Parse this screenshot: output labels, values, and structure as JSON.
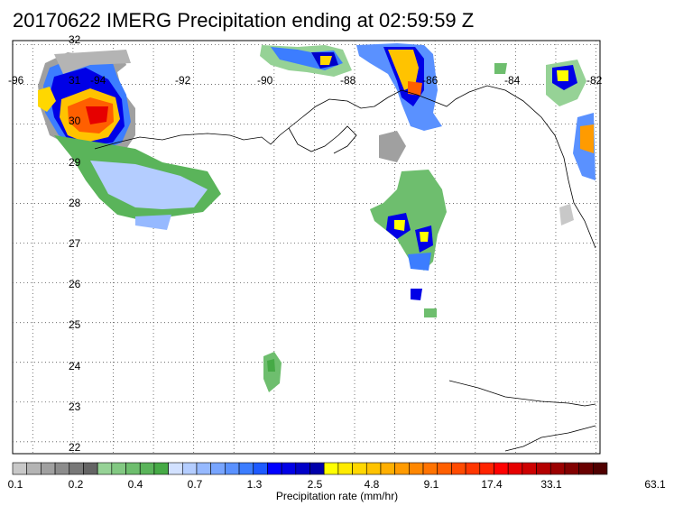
{
  "title": "20170622 IMERG Precipitation ending at 02:59:59 Z",
  "map": {
    "lon_labels": [
      "-96",
      "-94",
      "-92",
      "-90",
      "-88",
      "-86",
      "-84",
      "-82"
    ],
    "lat_labels": [
      "32",
      "31",
      "30",
      "29",
      "28",
      "27",
      "26",
      "25",
      "24",
      "23",
      "22"
    ],
    "lon_range": [
      -96.5,
      -81.9
    ],
    "lat_range": [
      21.7,
      32.1
    ],
    "grid": true
  },
  "colorbar": {
    "tick_labels": [
      "0.1",
      "0.2",
      "0.4",
      "0.7",
      "1.3",
      "2.5",
      "4.8",
      "9.1",
      "17.4",
      "33.1",
      "63.1"
    ],
    "title": "Precipitation rate (mm/hr)",
    "colors": [
      "#c8c8c8",
      "#b4b4b4",
      "#a0a0a0",
      "#8c8c8c",
      "#787878",
      "#646464",
      "#96d296",
      "#82c882",
      "#6ebe6e",
      "#5ab45a",
      "#46aa46",
      "#d2e1ff",
      "#b4cdff",
      "#96b9ff",
      "#78a5ff",
      "#5a91ff",
      "#3c7dff",
      "#1e5aff",
      "#0000ff",
      "#0000e6",
      "#0000c8",
      "#0000aa",
      "#ffff00",
      "#ffeb00",
      "#ffd700",
      "#ffc300",
      "#ffaf00",
      "#ff9b00",
      "#ff8700",
      "#ff7300",
      "#ff5f00",
      "#ff4b00",
      "#ff3700",
      "#ff2300",
      "#ff0000",
      "#e60000",
      "#cd0000",
      "#b40000",
      "#9b0000",
      "#820000",
      "#690000",
      "#500000"
    ]
  }
}
